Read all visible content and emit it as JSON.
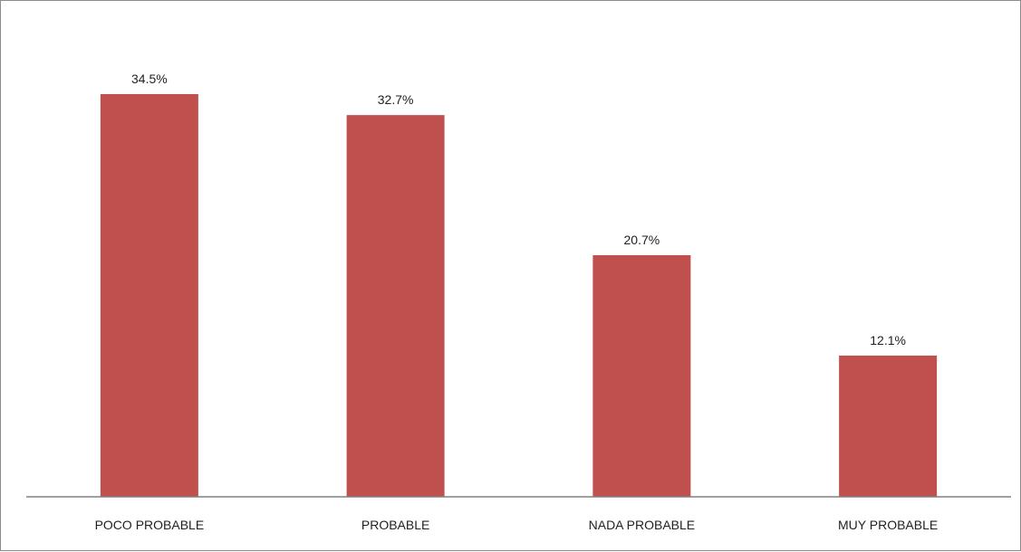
{
  "chart_data": {
    "type": "bar",
    "title": "",
    "xlabel": "",
    "ylabel": "",
    "categories": [
      "POCO PROBABLE",
      "PROBABLE",
      "NADA PROBABLE",
      "MUY PROBABLE"
    ],
    "values": [
      34.5,
      32.7,
      20.7,
      12.1
    ],
    "value_labels": [
      "34.5%",
      "32.7%",
      "20.7%",
      "12.1%"
    ],
    "unit": "%",
    "ylim": [
      0,
      40
    ],
    "grid": false,
    "legend": "none",
    "bar_color": "#c0504d",
    "axis_color": "#808080"
  }
}
